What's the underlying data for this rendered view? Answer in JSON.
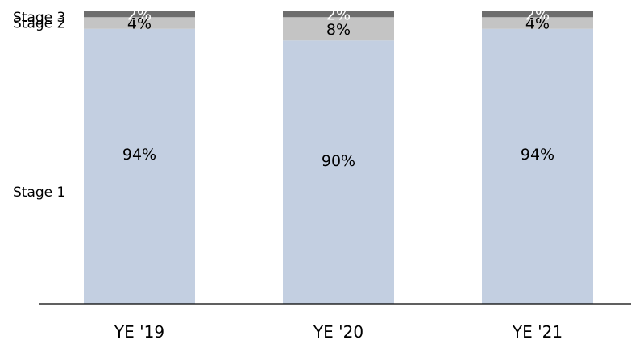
{
  "chart_data": {
    "type": "bar",
    "stacked": true,
    "categories": [
      "YE '19",
      "YE '20",
      "YE '21"
    ],
    "series": [
      {
        "name": "Stage 1",
        "values": [
          94,
          90,
          94
        ],
        "labels": [
          "94%",
          "90%",
          "94%"
        ],
        "color": "#c3cfe1",
        "label_color": "#000000"
      },
      {
        "name": "Stage 2",
        "values": [
          4,
          8,
          4
        ],
        "labels": [
          "4%",
          "8%",
          "4%"
        ],
        "color": "#c4c4c4",
        "label_color": "#000000"
      },
      {
        "name": "Stage 3",
        "values": [
          2,
          2,
          2
        ],
        "labels": [
          "2%",
          "2%",
          "2%"
        ],
        "color": "#6d6d6d",
        "label_color": "#ffffff"
      }
    ],
    "ylim": [
      0,
      100
    ],
    "grid": false,
    "legend": "left",
    "axis_color": "#000000"
  }
}
